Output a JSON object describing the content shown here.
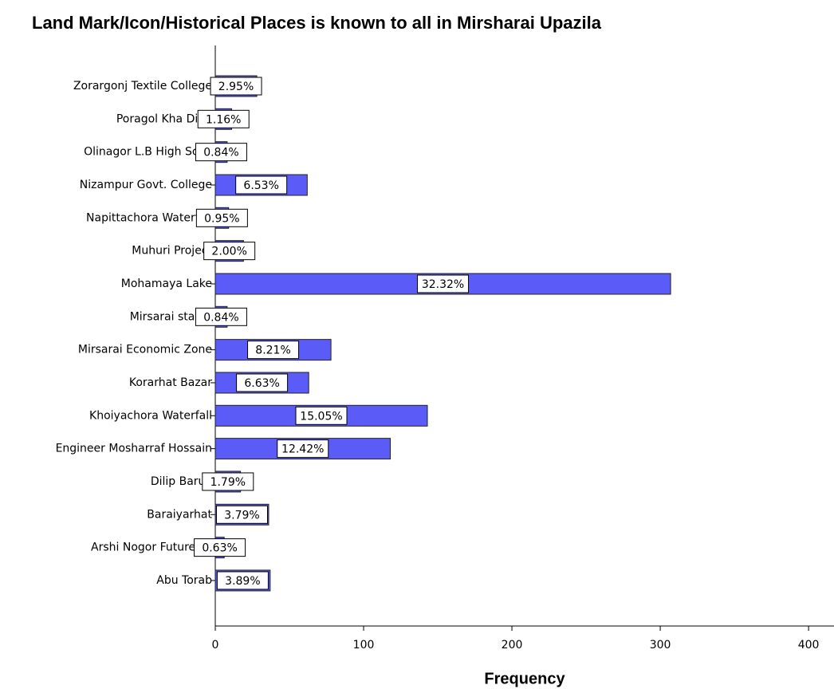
{
  "chart_data": {
    "type": "barh",
    "title": "Land Mark/Icon/Historical Places is known to all in Mirsharai Upazila",
    "xlabel": "Frequency",
    "categories": [
      "Zorargonj Textile College",
      "Poragol Kha Digh",
      "Olinagor L.B High Scho",
      "Nizampur Govt. College",
      "Napittachora Waterfall",
      "Muhuri Project",
      "Mohamaya Lake",
      "Mirsarai stadiu",
      "Mirsarai Economic Zone",
      "Korarhat Bazar",
      "Khoiyachora Waterfall",
      "Engineer Mosharraf Hossain",
      "Dilip Barua",
      "Baraiyarhat",
      "Arshi Nogor Future Pa",
      "Abu Torab"
    ],
    "values": [
      28,
      11,
      8,
      62,
      9,
      19,
      307,
      8,
      78,
      63,
      143,
      118,
      17,
      36,
      6,
      37
    ],
    "percent_labels": [
      "2.95%",
      "1.16%",
      "0.84%",
      "6.53%",
      "0.95%",
      "2.00%",
      "32.32%",
      "0.84%",
      "8.21%",
      "6.63%",
      "15.05%",
      "12.42%",
      "1.79%",
      "3.79%",
      "0.63%",
      "3.89%"
    ],
    "color": "#5b5bf8",
    "xlim": [
      0,
      415
    ],
    "xticks": [
      0,
      100,
      200,
      300,
      400
    ]
  }
}
